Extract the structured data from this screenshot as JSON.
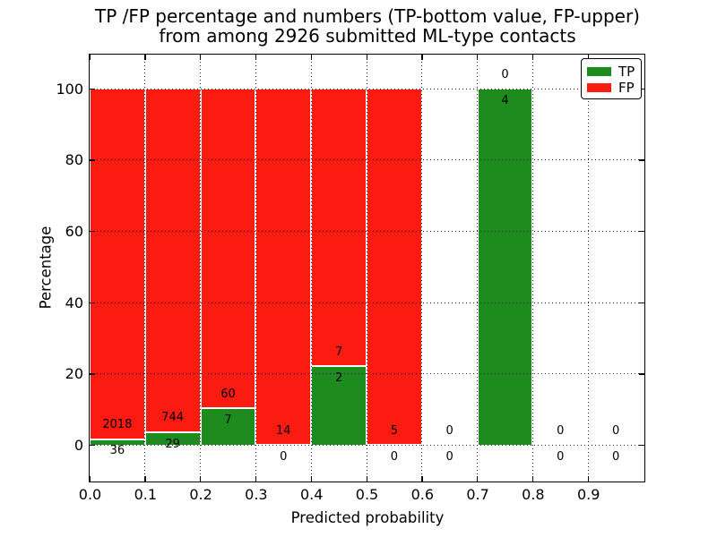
{
  "figure": {
    "background": "#ffffff",
    "text_color": "#000000",
    "frame_color": "#000000"
  },
  "chart_data": {
    "type": "bar",
    "stacked": true,
    "title": "TP /FP percentage and numbers (TP-bottom value, FP-upper)\nfrom among 2926 submitted ML-type contacts",
    "title_line1": "TP /FP percentage and numbers (TP-bottom value, FP-upper)",
    "title_line2": "from among 2926 submitted ML-type contacts",
    "total_submitted_contacts": 2926,
    "xlabel": "Predicted probability",
    "ylabel": "Percentage",
    "xlim": [
      0.0,
      1.0
    ],
    "ylim": [
      -10,
      110
    ],
    "x_tick_values": [
      0.0,
      0.1,
      0.2,
      0.3,
      0.4,
      0.5,
      0.6,
      0.7,
      0.8,
      0.9
    ],
    "x_tick_labels": [
      "0.0",
      "0.1",
      "0.2",
      "0.3",
      "0.4",
      "0.5",
      "0.6",
      "0.7",
      "0.8",
      "0.9"
    ],
    "y_tick_values": [
      0,
      20,
      40,
      60,
      80,
      100
    ],
    "y_tick_labels": [
      "0",
      "20",
      "40",
      "60",
      "80",
      "100"
    ],
    "grid": "dotted",
    "grid_above_bars": true,
    "bar_edge_color": "#ffffff",
    "legend": {
      "position": "upper-right",
      "entries": [
        {
          "label": "TP",
          "color": "#1e8b1e"
        },
        {
          "label": "FP",
          "color": "#fb1b10"
        }
      ]
    },
    "series_colors": {
      "tp": "#1e8b1e",
      "fp": "#fb1b10"
    },
    "bins": [
      {
        "range": [
          0.0,
          0.1
        ],
        "tp_count": 36,
        "fp_count": 2018,
        "tp_pct": 1.75,
        "fp_pct": 98.25
      },
      {
        "range": [
          0.1,
          0.2
        ],
        "tp_count": 29,
        "fp_count": 744,
        "tp_pct": 3.75,
        "fp_pct": 96.25
      },
      {
        "range": [
          0.2,
          0.3
        ],
        "tp_count": 7,
        "fp_count": 60,
        "tp_pct": 10.45,
        "fp_pct": 89.55
      },
      {
        "range": [
          0.3,
          0.4
        ],
        "tp_count": 0,
        "fp_count": 14,
        "tp_pct": 0,
        "fp_pct": 100
      },
      {
        "range": [
          0.4,
          0.5
        ],
        "tp_count": 2,
        "fp_count": 7,
        "tp_pct": 22.22,
        "fp_pct": 77.78
      },
      {
        "range": [
          0.5,
          0.6
        ],
        "tp_count": 0,
        "fp_count": 5,
        "tp_pct": 0,
        "fp_pct": 100
      },
      {
        "range": [
          0.6,
          0.7
        ],
        "tp_count": 0,
        "fp_count": 0,
        "tp_pct": 0,
        "fp_pct": 0
      },
      {
        "range": [
          0.7,
          0.8
        ],
        "tp_count": 4,
        "fp_count": 0,
        "tp_pct": 100,
        "fp_pct": 0
      },
      {
        "range": [
          0.8,
          0.9
        ],
        "tp_count": 0,
        "fp_count": 0,
        "tp_pct": 0,
        "fp_pct": 0
      },
      {
        "range": [
          0.9,
          1.0
        ],
        "tp_count": 0,
        "fp_count": 0,
        "tp_pct": 0,
        "fp_pct": 0
      }
    ]
  }
}
